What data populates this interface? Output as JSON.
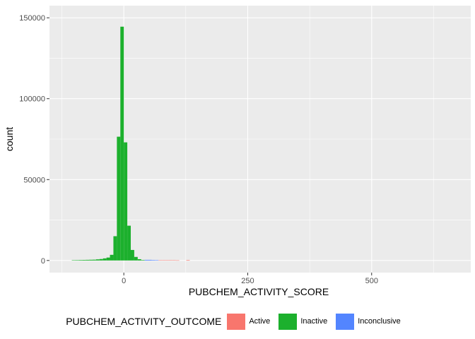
{
  "chart_data": {
    "type": "bar",
    "xlabel": "PUBCHEM_ACTIVITY_SCORE",
    "ylabel": "count",
    "xlim": [
      -150,
      700
    ],
    "ylim": [
      0,
      150000
    ],
    "x_ticks": [
      0,
      250,
      500
    ],
    "y_ticks": [
      0,
      50000,
      100000,
      150000
    ],
    "x_tick_labels": [
      "0",
      "250",
      "500"
    ],
    "y_tick_labels": [
      "0",
      "50000",
      "100000",
      "150000"
    ],
    "bin_width": 7,
    "legend": {
      "title": "PUBCHEM_ACTIVITY_OUTCOME",
      "position": "bottom",
      "entries": [
        "Active",
        "Inactive",
        "Inconclusive"
      ]
    },
    "grid": true,
    "series": [
      {
        "name": "Inactive",
        "color": "#1CB02D",
        "bins": [
          {
            "x": -105,
            "value": 200
          },
          {
            "x": -98,
            "value": 250
          },
          {
            "x": -91,
            "value": 300
          },
          {
            "x": -84,
            "value": 350
          },
          {
            "x": -77,
            "value": 400
          },
          {
            "x": -70,
            "value": 450
          },
          {
            "x": -63,
            "value": 500
          },
          {
            "x": -56,
            "value": 700
          },
          {
            "x": -49,
            "value": 900
          },
          {
            "x": -42,
            "value": 1300
          },
          {
            "x": -35,
            "value": 1800
          },
          {
            "x": -28,
            "value": 3500
          },
          {
            "x": -21,
            "value": 15000
          },
          {
            "x": -14,
            "value": 76500
          },
          {
            "x": -7,
            "value": 144500
          },
          {
            "x": 0,
            "value": 73000
          },
          {
            "x": 7,
            "value": 21500
          },
          {
            "x": 14,
            "value": 6500
          },
          {
            "x": 21,
            "value": 2200
          },
          {
            "x": 28,
            "value": 800
          },
          {
            "x": 35,
            "value": 300
          }
        ]
      },
      {
        "name": "Inconclusive",
        "color": "#5385FF",
        "bins": [
          {
            "x": 42,
            "value": 400
          },
          {
            "x": 49,
            "value": 400
          },
          {
            "x": 56,
            "value": 300
          },
          {
            "x": 63,
            "value": 250
          }
        ]
      },
      {
        "name": "Active",
        "color": "#F8766D",
        "bins": [
          {
            "x": 70,
            "value": 200
          },
          {
            "x": 77,
            "value": 200
          },
          {
            "x": 84,
            "value": 200
          },
          {
            "x": 91,
            "value": 150
          },
          {
            "x": 98,
            "value": 150
          },
          {
            "x": 105,
            "value": 100
          },
          {
            "x": 126,
            "value": 300
          }
        ]
      }
    ]
  }
}
